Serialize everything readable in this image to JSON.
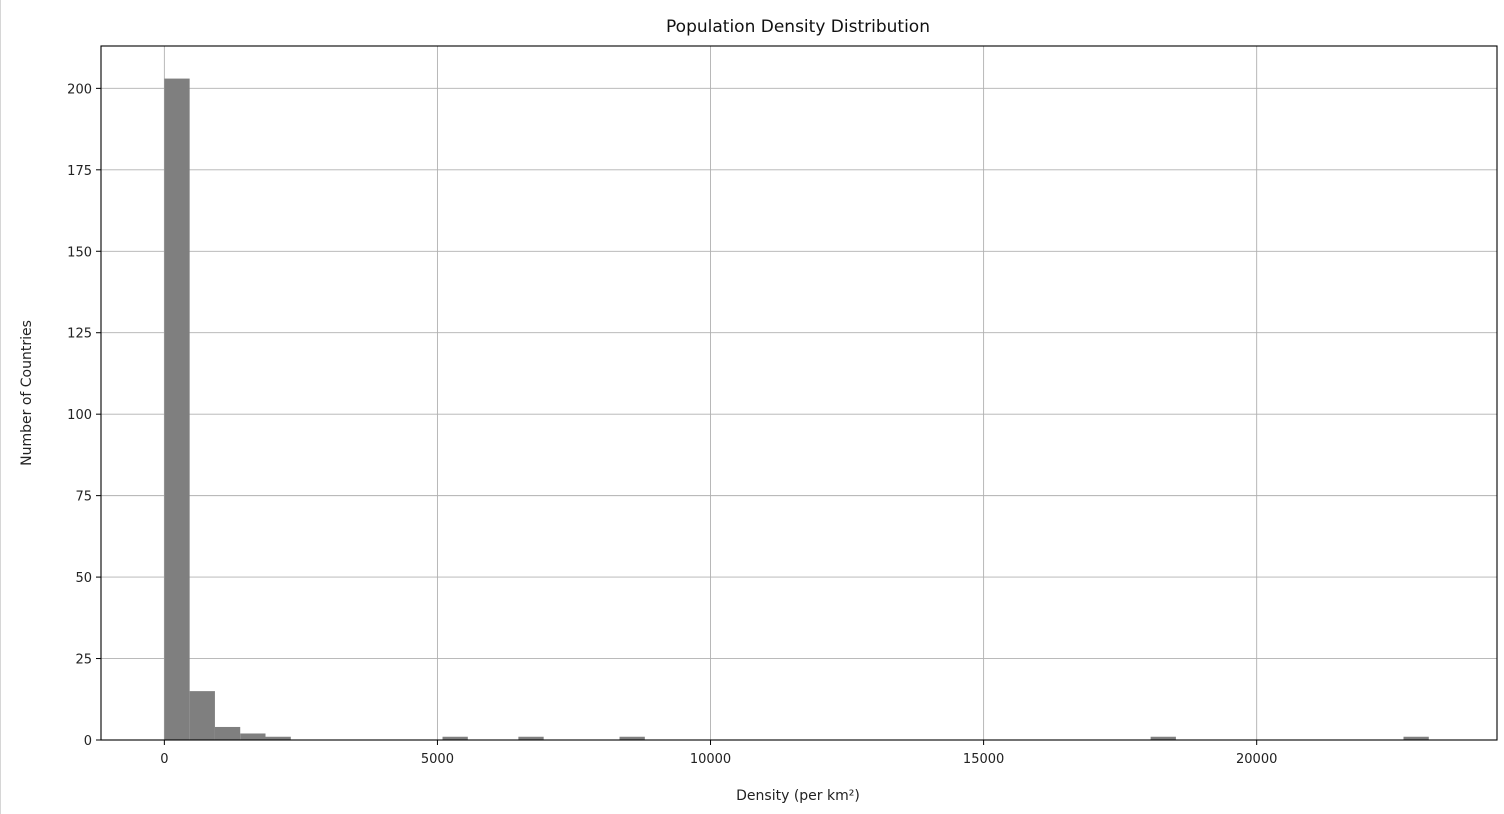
{
  "chart_data": {
    "type": "bar",
    "title": "Population Density Distribution",
    "xlabel": "Density (per km²)",
    "ylabel": "Number of Countries",
    "xlim": [
      -1160,
      24400
    ],
    "ylim": [
      0,
      213
    ],
    "grid": true,
    "bar_color": "#7f7f7f",
    "x_ticks": [
      0,
      5000,
      10000,
      15000,
      20000
    ],
    "x_tick_labels": [
      "0",
      "5000",
      "10000",
      "15000",
      "20000"
    ],
    "y_ticks": [
      0,
      25,
      50,
      75,
      100,
      125,
      150,
      175,
      200
    ],
    "y_tick_labels": [
      "0",
      "25",
      "50",
      "75",
      "100",
      "125",
      "150",
      "175",
      "200"
    ],
    "bin_width": 463,
    "bins": [
      {
        "start": 0,
        "end": 463,
        "count": 203
      },
      {
        "start": 463,
        "end": 926,
        "count": 15
      },
      {
        "start": 926,
        "end": 1389,
        "count": 4
      },
      {
        "start": 1389,
        "end": 1852,
        "count": 2
      },
      {
        "start": 1852,
        "end": 2315,
        "count": 1
      },
      {
        "start": 5093,
        "end": 5556,
        "count": 1
      },
      {
        "start": 6482,
        "end": 6945,
        "count": 1
      },
      {
        "start": 8334,
        "end": 8797,
        "count": 1
      },
      {
        "start": 18058,
        "end": 18521,
        "count": 1
      },
      {
        "start": 22688,
        "end": 23151,
        "count": 1
      }
    ]
  }
}
